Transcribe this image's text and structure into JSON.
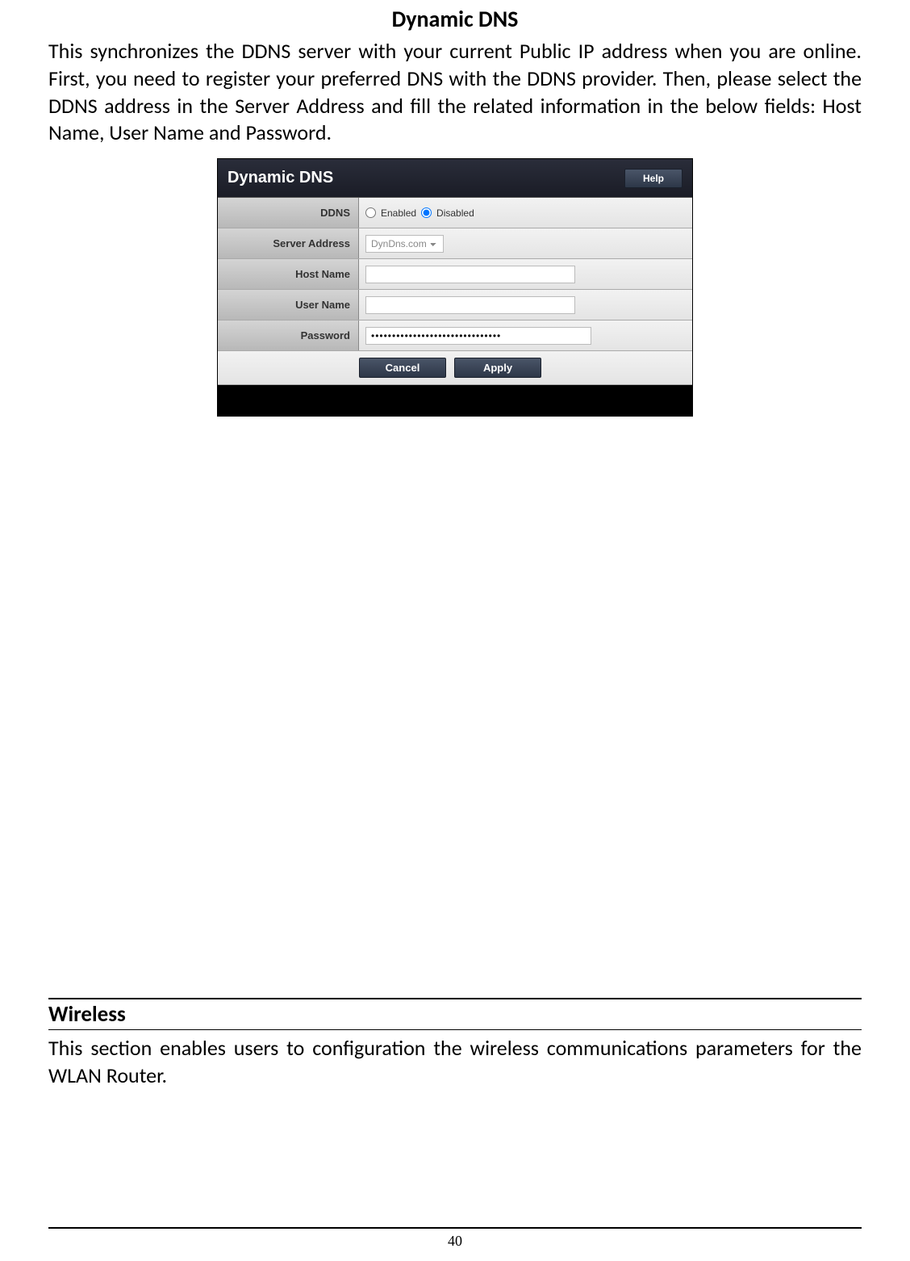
{
  "page": {
    "title": "Dynamic DNS",
    "intro": "This synchronizes the DDNS server with your current Public IP address when you are online.  First, you need to register your preferred DNS with the DDNS provider. Then, please select the DDNS address in the Server Address and fill the related information in the below fields: Host Name, User Name and Password.",
    "page_number": "40"
  },
  "panel": {
    "title": "Dynamic DNS",
    "help_label": "Help",
    "fields": {
      "ddns": {
        "label": "DDNS",
        "option_enabled": "Enabled",
        "option_disabled": "Disabled",
        "selected": "Disabled"
      },
      "server_address": {
        "label": "Server Address",
        "value": "DynDns.com"
      },
      "host_name": {
        "label": "Host Name",
        "value": ""
      },
      "user_name": {
        "label": "User Name",
        "value": ""
      },
      "password": {
        "label": "Password",
        "value": "•••••••••••••••••••••••••••••••"
      }
    },
    "buttons": {
      "cancel": "Cancel",
      "apply": "Apply"
    }
  },
  "wireless": {
    "heading": "Wireless",
    "text": "This section enables users to configuration the wireless communications parameters for the WLAN Router."
  },
  "colors": {
    "panel_header_bg_top": "#2a2d3a",
    "panel_header_bg_bottom": "#1a1c26",
    "label_cell_bg_top": "#d4d4d4",
    "label_cell_bg_bottom": "#b8b8b8",
    "input_cell_bg_top": "#f2f2f2",
    "input_cell_bg_bottom": "#e4e4e4",
    "button_bg_top": "#4a5568",
    "button_bg_bottom": "#2d3748",
    "text_color": "#333333",
    "white": "#ffffff",
    "black": "#000000"
  }
}
